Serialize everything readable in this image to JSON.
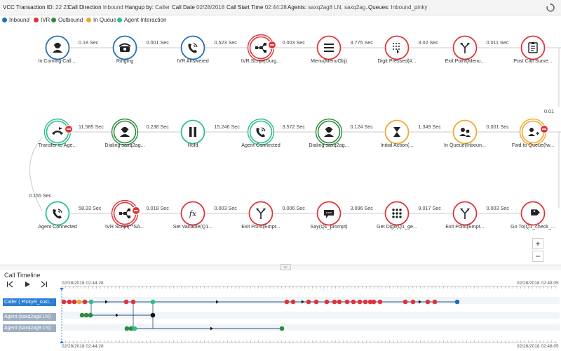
{
  "header": {
    "transaction_label": "VCC Transaction ID:",
    "transaction_value": "22 23",
    "direction_label": "Call Direction",
    "direction_value": "Inbound",
    "hangup_label": "Hangup by:",
    "hangup_value": "Caller",
    "date_label": "Call Date",
    "date_value": "02/28/2018",
    "start_label": "Call Start Time",
    "start_value": "02:44:28",
    "agents_label": "Agents:",
    "agents_value": "saxq2ag8 LN, saxq2ag...",
    "queues_label": "Queues:",
    "queues_value": "Inbound_pinky",
    "refresh_icon": "refresh-icon"
  },
  "legend": [
    {
      "label": "Inbound",
      "color": "#1f6fb5"
    },
    {
      "label": "IVR",
      "color": "#e0343a"
    },
    {
      "label": "Outbound",
      "color": "#2e8b3c"
    },
    {
      "label": "In Queue",
      "color": "#f0a830"
    },
    {
      "label": "Agent Interaction",
      "color": "#2ebf8a"
    }
  ],
  "flow": {
    "rows": [
      {
        "nodes": [
          {
            "label": "In Coming Call ...",
            "color": "#1f6fb5",
            "icon": "caller-icon"
          },
          {
            "label": "Ringing",
            "color": "#1f6fb5",
            "icon": "ringing-phone-icon"
          },
          {
            "label": "IVR Answered",
            "color": "#1f6fb5",
            "icon": "phone-answered-icon"
          },
          {
            "label": "IVR Script(Durg...",
            "color": "#e0343a",
            "icon": "script-icon",
            "double": true,
            "badge": true
          },
          {
            "label": "Menu(MenuObj)",
            "color": "#e0343a",
            "icon": "menu-icon"
          },
          {
            "label": "Digit Pressed(#...",
            "color": "#e0343a",
            "icon": "keypad-press-icon"
          },
          {
            "label": "Exit Point(Menu...",
            "color": "#e0343a",
            "icon": "exit-point-icon"
          },
          {
            "label": "Post Call Surve...",
            "color": "#e0343a",
            "icon": "survey-icon"
          }
        ],
        "edges": [
          "0.18 Sec",
          "0.001 Sec",
          "0.523 Sec",
          "0.003 Sec",
          "3.775 Sec",
          "3.02 Sec",
          "0.011 Sec"
        ]
      },
      {
        "nodes": [
          {
            "label": "Transfer to Age...",
            "color": "#2ebf8a",
            "icon": "transfer-icon",
            "double": true,
            "badge": true
          },
          {
            "label": "Dialing saxq2ag...",
            "color": "#2e8b3c",
            "icon": "agent-icon",
            "double": true
          },
          {
            "label": "Hold",
            "color": "#2ebf8a",
            "icon": "hold-icon"
          },
          {
            "label": "Agent Connected",
            "color": "#2ebf8a",
            "icon": "agent-connected-icon",
            "double": true
          },
          {
            "label": "Dialing saxq2ag...",
            "color": "#2e8b3c",
            "icon": "agent-icon",
            "double": true
          },
          {
            "label": "Initial Action(...",
            "color": "#f0a830",
            "icon": "hourglass-icon"
          },
          {
            "label": "In Queue(Inboun...",
            "color": "#f0a830",
            "icon": "queue-icon"
          },
          {
            "label": "Fwd to Queue(fw...",
            "color": "#f0a830",
            "icon": "forward-queue-icon",
            "double": true,
            "badge": true
          }
        ],
        "edges": [
          "11.585 Sec",
          "0.238 Sec",
          "15.246 Sec",
          "3.572 Sec",
          "0.124 Sec",
          "1.349 Sec",
          "0.001 Sec"
        ]
      },
      {
        "nodes": [
          {
            "label": "Agent Connected",
            "color": "#2ebf8a",
            "icon": "agent-connected-icon"
          },
          {
            "label": "IVR Script(**SA...",
            "color": "#e0343a",
            "icon": "script-icon",
            "double": true,
            "badge": true
          },
          {
            "label": "Set Variable(Q1...",
            "color": "#e0343a",
            "icon": "function-icon"
          },
          {
            "label": "Exit Point(Empt...",
            "color": "#e0343a",
            "icon": "exit-point-icon"
          },
          {
            "label": "Say(Q1_prompt)",
            "color": "#e0343a",
            "icon": "say-icon"
          },
          {
            "label": "Get Digit(Q1_ge...",
            "color": "#e0343a",
            "icon": "keypad-icon"
          },
          {
            "label": "Exit Point(Empt...",
            "color": "#e0343a",
            "icon": "exit-point-icon"
          },
          {
            "label": "Go To(Q1_check_...",
            "color": "#e0343a",
            "icon": "goto-tag-icon"
          }
        ],
        "edges": [
          "58.33 Sec",
          "0.018 Sec",
          "0.003 Sec",
          "0.006 Sec",
          "3.096 Sec",
          "9.017 Sec",
          "0.003 Sec"
        ]
      }
    ],
    "vertical_edges": {
      "right_partial": "0.01",
      "left": "0.155 Sec"
    }
  },
  "zoom": {
    "in_label": "+",
    "out_label": "−"
  },
  "timeline": {
    "title": "Call Timeline",
    "start_time": "02/28/2018 02:44:28",
    "end_time": "02/28/2018 02:48:05",
    "rows": [
      {
        "label": "Caller ( PinkyR_cust...",
        "selected": true
      },
      {
        "label": "Agent (saxq2ag8 LN)",
        "selected": false
      },
      {
        "label": "Agent (saxq2ag9 LN)",
        "selected": false
      }
    ],
    "controls": {
      "first": "skip-start-icon",
      "play": "play-icon",
      "last": "skip-end-icon"
    }
  }
}
